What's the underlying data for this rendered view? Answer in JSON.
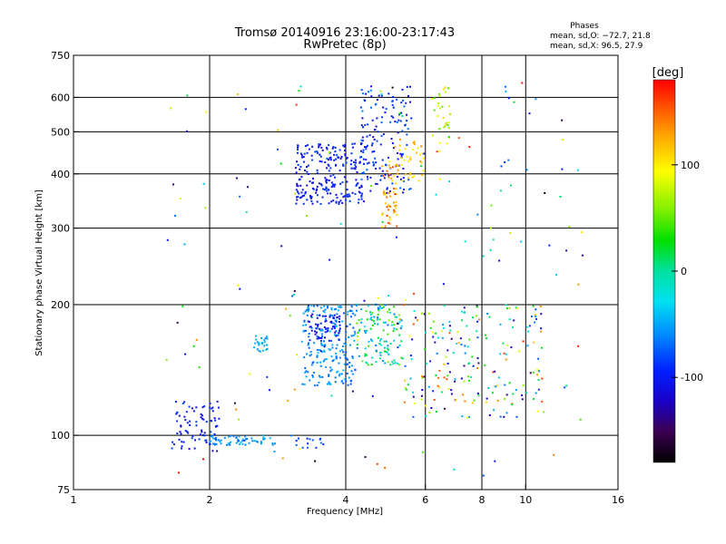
{
  "chart_data": {
    "type": "scatter",
    "title": "Tromsø 20140916 23:16:00-23:17:43",
    "subtitle": "RwPretec (8p)",
    "xlabel": "Frequency [MHz]",
    "ylabel": "Stationary phase Virtual Height [km]",
    "x_scale": "log",
    "y_scale": "log",
    "xlim": [
      1,
      16
    ],
    "ylim": [
      75,
      750
    ],
    "x_ticks": [
      1,
      2,
      4,
      6,
      8,
      10,
      16
    ],
    "x_tick_labels": [
      "1",
      "2",
      "4",
      "6",
      "8",
      "10",
      "16"
    ],
    "y_ticks": [
      75,
      100,
      200,
      300,
      400,
      500,
      600,
      750
    ],
    "y_tick_labels": [
      "75",
      "100",
      "200",
      "300",
      "400",
      "500",
      "600",
      "750"
    ],
    "grid_x": [
      2,
      4,
      6,
      8,
      10
    ],
    "grid_y": [
      100,
      200,
      300,
      400,
      500,
      600
    ],
    "grid": true,
    "colorbar": {
      "label": "[deg]",
      "range": [
        -180,
        180
      ],
      "ticks": [
        100,
        0,
        -100
      ],
      "tick_labels": [
        "100",
        "0",
        "-100"
      ]
    },
    "phase_stats": {
      "title": "Phases",
      "line_o": "mean, sd,O: −72.7, 21.8",
      "line_x": "mean, sd,X:  96.5, 27.9"
    },
    "clusters": [
      {
        "x": [
          1.65,
          2.1
        ],
        "y": [
          92,
          120
        ],
        "phase": [
          -120,
          -80
        ],
        "n": 80
      },
      {
        "x": [
          2.0,
          2.8
        ],
        "y": [
          95,
          100
        ],
        "phase": [
          -70,
          -40
        ],
        "n": 60
      },
      {
        "x": [
          2.5,
          2.7
        ],
        "y": [
          155,
          170
        ],
        "phase": [
          -60,
          -40
        ],
        "n": 25
      },
      {
        "x": [
          3.0,
          3.6
        ],
        "y": [
          93,
          100
        ],
        "phase": [
          -100,
          -60
        ],
        "n": 15
      },
      {
        "x": [
          3.2,
          4.2
        ],
        "y": [
          130,
          200
        ],
        "phase": [
          -80,
          -40
        ],
        "n": 220
      },
      {
        "x": [
          3.3,
          3.9
        ],
        "y": [
          165,
          190
        ],
        "phase": [
          -120,
          -90
        ],
        "n": 60
      },
      {
        "x": [
          4.2,
          5.4
        ],
        "y": [
          145,
          200
        ],
        "phase": [
          -70,
          60
        ],
        "n": 130
      },
      {
        "x": [
          5.2,
          11.0
        ],
        "y": [
          110,
          200
        ],
        "phase": [
          -150,
          160
        ],
        "n": 200
      },
      {
        "x": [
          3.1,
          4.4
        ],
        "y": [
          340,
          470
        ],
        "phase": [
          -120,
          -80
        ],
        "n": 230
      },
      {
        "x": [
          4.3,
          5.6
        ],
        "y": [
          360,
          640
        ],
        "phase": [
          -120,
          -60
        ],
        "n": 150
      },
      {
        "x": [
          4.8,
          5.2
        ],
        "y": [
          300,
          420
        ],
        "phase": [
          100,
          160
        ],
        "n": 50
      },
      {
        "x": [
          5.0,
          6.0
        ],
        "y": [
          380,
          480
        ],
        "phase": [
          90,
          140
        ],
        "n": 40
      },
      {
        "x": [
          6.2,
          6.8
        ],
        "y": [
          450,
          650
        ],
        "phase": [
          30,
          130
        ],
        "n": 30
      },
      {
        "x": [
          1.6,
          13.5
        ],
        "y": [
          80,
          650
        ],
        "phase": [
          -180,
          180
        ],
        "n": 160
      }
    ]
  }
}
